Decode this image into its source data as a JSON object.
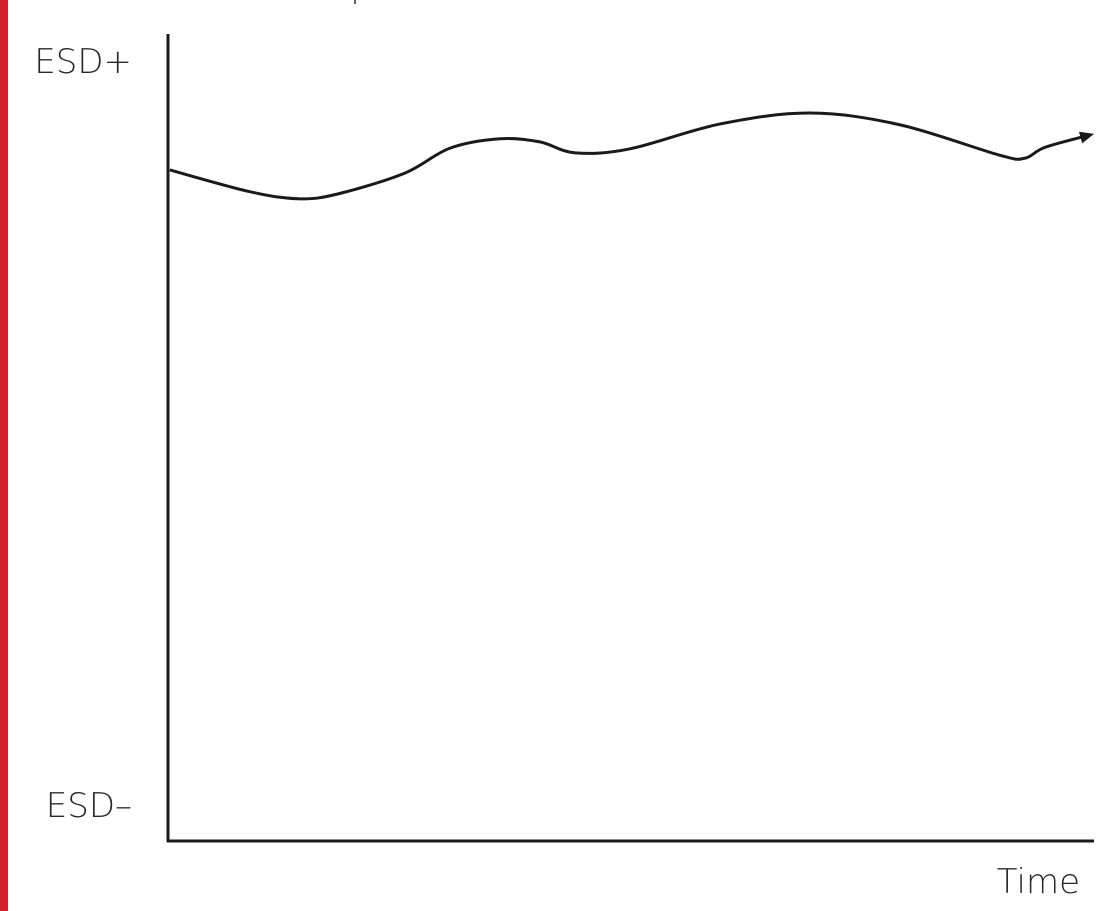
{
  "colors": {
    "accent_bar": "#d0232e",
    "line": "#1a1a1a",
    "text": "#2a2a2a"
  },
  "chart_data": {
    "type": "line",
    "title": "",
    "xlabel": "Time",
    "ylabel": "",
    "y_tick_labels": {
      "top": "ESD+",
      "bottom": "ESD–"
    },
    "xlim": [
      0,
      100
    ],
    "ylim": [
      0,
      100
    ],
    "grid": false,
    "arrow_at_end": true,
    "series": [
      {
        "x": [
          0.2,
          8.9,
          14.3,
          18.6,
          25.6,
          30.5,
          35.9,
          40.2,
          44.0,
          49.9,
          59.7,
          69.4,
          79.1,
          89.9,
          92.6,
          94.8,
          99.7
        ],
        "y": [
          85.9,
          83.1,
          82.2,
          82.9,
          85.5,
          88.7,
          89.9,
          89.5,
          88.1,
          88.6,
          91.8,
          93.2,
          91.7,
          87.8,
          87.4,
          88.8,
          90.4
        ]
      }
    ]
  }
}
